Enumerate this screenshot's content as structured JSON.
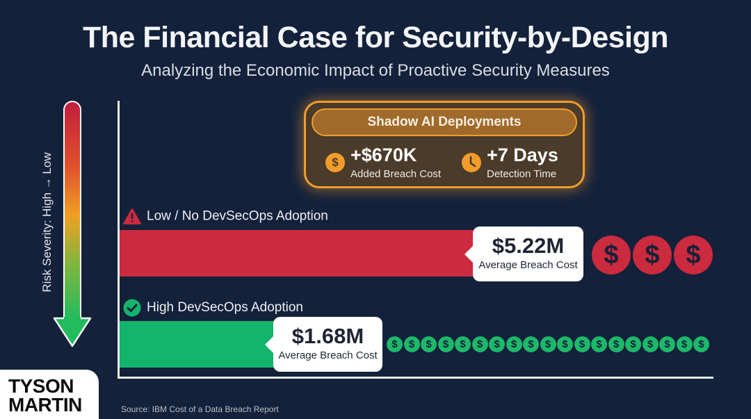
{
  "header": {
    "title": "The Financial Case for Security-by-Design",
    "subtitle": "Analyzing the Economic Impact of Proactive Security Measures"
  },
  "risk_axis": {
    "label": "Risk Severity: High → Low",
    "colors": [
      "#c21d3c",
      "#f0a024",
      "#22bb5e"
    ]
  },
  "shadow_ai": {
    "title": "Shadow AI Deployments",
    "stats": [
      {
        "icon": "dollar-icon",
        "glyph": "$",
        "value": "+$670K",
        "label": "Added Breach Cost"
      },
      {
        "icon": "clock-icon",
        "glyph": "◷",
        "value": "+7 Days",
        "label": "Detection Time"
      }
    ],
    "accent": "#f39c2a"
  },
  "bars": [
    {
      "label": "Low / No DevSecOps Adoption",
      "icon": "warning-icon",
      "value": "$5.22M",
      "sublabel": "Average Breach Cost",
      "color": "#cc2a3e"
    },
    {
      "label": "High DevSecOps Adoption",
      "icon": "check-circle-icon",
      "value": "$1.68M",
      "sublabel": "Average Breach Cost",
      "color": "#13b46c"
    }
  ],
  "coins": {
    "red_count": 3,
    "green_count": 19,
    "glyph": "$"
  },
  "chart_data": {
    "type": "bar",
    "orientation": "horizontal",
    "title": "The Financial Case for Security-by-Design",
    "subtitle": "Analyzing the Economic Impact of Proactive Security Measures",
    "categories": [
      "Low / No DevSecOps Adoption",
      "High DevSecOps Adoption"
    ],
    "values": [
      5.22,
      1.68
    ],
    "unit": "USD millions",
    "value_labels": [
      "$5.22M",
      "$1.68M"
    ],
    "value_sublabels": [
      "Average Breach Cost",
      "Average Breach Cost"
    ],
    "colors": [
      "#cc2a3e",
      "#13b46c"
    ],
    "ylabel": "Risk Severity: High → Low",
    "xlabel": "",
    "grid": false,
    "annotations": [
      {
        "title": "Shadow AI Deployments",
        "items": [
          {
            "value": "+$670K",
            "label": "Added Breach Cost"
          },
          {
            "value": "+7 Days",
            "label": "Detection Time"
          }
        ]
      }
    ]
  },
  "footer": {
    "brand_line1": "TYSON",
    "brand_line2": "MARTIN",
    "source": "Source: IBM Cost of a Data Breach Report"
  }
}
